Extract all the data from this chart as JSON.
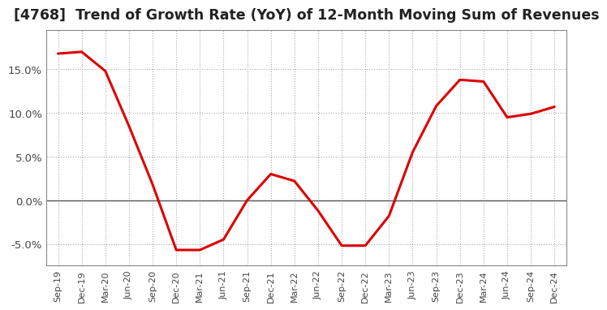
{
  "title": "[4768]  Trend of Growth Rate (YoY) of 12-Month Moving Sum of Revenues",
  "title_fontsize": 12.5,
  "line_color": "#dd0000",
  "background_color": "#ffffff",
  "grid_color": "#aaaaaa",
  "ylim": [
    -0.075,
    0.195
  ],
  "yticks": [
    -0.05,
    0.0,
    0.05,
    0.1,
    0.15
  ],
  "ytick_labels": [
    "-5.0%",
    "0.0%",
    "5.0%",
    "10.0%",
    "15.0%"
  ],
  "x_labels": [
    "Sep-19",
    "Dec-19",
    "Mar-20",
    "Jun-20",
    "Sep-20",
    "Dec-20",
    "Mar-21",
    "Jun-21",
    "Sep-21",
    "Dec-21",
    "Mar-22",
    "Jun-22",
    "Sep-22",
    "Dec-22",
    "Mar-23",
    "Jun-23",
    "Sep-23",
    "Dec-23",
    "Mar-24",
    "Jun-24",
    "Sep-24",
    "Dec-24"
  ],
  "y_values": [
    0.168,
    0.17,
    0.148,
    0.085,
    0.018,
    -0.057,
    -0.057,
    -0.045,
    0.0,
    0.03,
    0.022,
    -0.012,
    -0.052,
    -0.052,
    -0.018,
    0.055,
    0.108,
    0.138,
    0.136,
    0.095,
    0.099,
    0.107
  ]
}
